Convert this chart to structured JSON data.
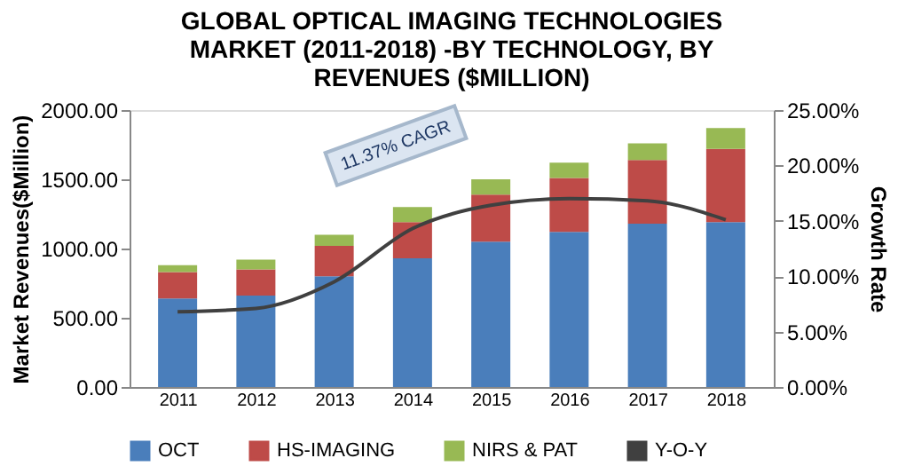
{
  "chart_data": {
    "type": "bar",
    "stacked": true,
    "title": "GLOBAL OPTICAL IMAGING TECHNOLOGIES MARKET (2011-2018) -BY TECHNOLOGY, BY REVENUES ($MILLION)",
    "ylabel": "Market Revenues($Million)",
    "y2label": "Growth Rate",
    "categories": [
      "2011",
      "2012",
      "2013",
      "2014",
      "2015",
      "2016",
      "2017",
      "2018"
    ],
    "series": [
      {
        "name": "OCT",
        "color": "#4a7ebb",
        "values": [
          640,
          660,
          800,
          930,
          1050,
          1120,
          1180,
          1190
        ]
      },
      {
        "name": "HS-IMAGING",
        "color": "#be4b48",
        "values": [
          190,
          190,
          220,
          260,
          340,
          390,
          460,
          530
        ]
      },
      {
        "name": "NIRS & PAT",
        "color": "#98b954",
        "values": [
          50,
          70,
          80,
          110,
          110,
          110,
          120,
          150
        ]
      },
      {
        "name": "Y-O-Y",
        "type": "line",
        "axis": "y2",
        "color": "#404040",
        "values": [
          6.8,
          7.1,
          9.5,
          14.3,
          16.4,
          17.0,
          16.8,
          15.1
        ]
      }
    ],
    "ylim": [
      0,
      2000
    ],
    "yticks": [
      {
        "value": 0,
        "label": "0.00"
      },
      {
        "value": 500,
        "label": "500.00"
      },
      {
        "value": 1000,
        "label": "1000.00"
      },
      {
        "value": 1500,
        "label": "1500.00"
      },
      {
        "value": 2000,
        "label": "2000.00"
      }
    ],
    "y2lim": [
      0,
      25
    ],
    "y2ticks": [
      {
        "value": 0,
        "label": "0.00%"
      },
      {
        "value": 5,
        "label": "5.00%"
      },
      {
        "value": 10,
        "label": "10.00%"
      },
      {
        "value": 15,
        "label": "15.00%"
      },
      {
        "value": 20,
        "label": "20.00%"
      },
      {
        "value": 25,
        "label": "25.00%"
      }
    ],
    "annotations": [
      "11.37% CAGR"
    ],
    "legend": "bottom",
    "grid": false,
    "marker": "none",
    "line_style": "solid"
  }
}
